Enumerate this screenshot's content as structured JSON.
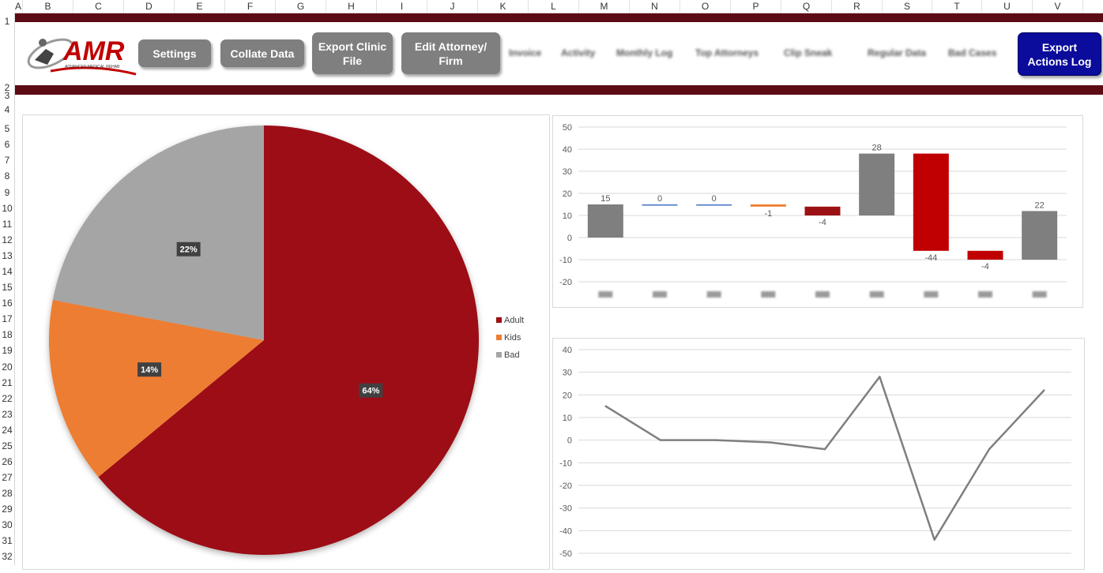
{
  "columns": [
    "A",
    "B",
    "C",
    "D",
    "E",
    "F",
    "G",
    "H",
    "I",
    "J",
    "K",
    "L",
    "M",
    "N",
    "O",
    "P",
    "Q",
    "R",
    "S",
    "T",
    "U",
    "V"
  ],
  "rows": [
    "1",
    "2",
    "3",
    "4",
    "5",
    "6",
    "7",
    "8",
    "9",
    "10",
    "11",
    "12",
    "13",
    "14",
    "15",
    "16",
    "17",
    "18",
    "19",
    "20",
    "21",
    "22",
    "23",
    "24",
    "25",
    "26",
    "27",
    "28",
    "29",
    "30",
    "31",
    "32"
  ],
  "logo": {
    "text": "AMR",
    "tagline": "ADVANCED MEDICAL REHAB"
  },
  "toolbar": {
    "settings": "Settings",
    "collate": "Collate Data",
    "export_clinic": "Export Clinic\nFile",
    "edit_attorney": "Edit Attorney/\nFirm",
    "export_actions": "Export\nActions Log"
  },
  "blurred_links": [
    "Invoice",
    "Activity",
    "Monthly Log",
    "Top Attorneys",
    "Clip Sneak",
    "Regular Data",
    "Bad Cases"
  ],
  "colors": {
    "adult": "#9c1114",
    "kids": "#ed7d31",
    "bad": "#a5a5a5",
    "waterfall_gray": "#7f7f7f",
    "waterfall_red": "#c00000",
    "line": "#7f7f7f",
    "banner": "#5c0a14",
    "export_blue": "#0b0b9c"
  },
  "chart_data": [
    {
      "type": "pie",
      "categories": [
        "Adult",
        "Kids",
        "Bad"
      ],
      "values": [
        64,
        14,
        22
      ],
      "data_labels": [
        "64%",
        "14%",
        "22%"
      ],
      "legend": "right"
    },
    {
      "type": "bar",
      "subtype": "waterfall",
      "ylim": [
        -20,
        50
      ],
      "yticks": [
        "50",
        "40",
        "30",
        "20",
        "10",
        "0",
        "-10",
        "-20"
      ],
      "ytick_values": [
        50,
        40,
        30,
        20,
        10,
        0,
        -10,
        -20
      ],
      "data_labels": [
        "15",
        "0",
        "0",
        "-1",
        "-4",
        "28",
        "-44",
        "-4",
        "22"
      ],
      "bars": [
        {
          "from": 0,
          "to": 15,
          "color": "#7f7f7f"
        },
        {
          "from": 15,
          "to": 15,
          "color": "#4472c4"
        },
        {
          "from": 15,
          "to": 15,
          "color": "#4472c4"
        },
        {
          "from": 15,
          "to": 14,
          "color": "#ed7d31"
        },
        {
          "from": 14,
          "to": 10,
          "color": "#9c1114"
        },
        {
          "from": 10,
          "to": 38,
          "color": "#7f7f7f"
        },
        {
          "from": 38,
          "to": -6,
          "color": "#c00000"
        },
        {
          "from": -6,
          "to": -10,
          "color": "#c00000"
        },
        {
          "from": -10,
          "to": 12,
          "color": "#7f7f7f"
        }
      ],
      "grid": true
    },
    {
      "type": "line",
      "values": [
        15,
        0,
        0,
        -1,
        -4,
        28,
        -44,
        -4,
        22
      ],
      "ylim": [
        -50,
        40
      ],
      "yticks": [
        "40",
        "30",
        "20",
        "10",
        "0",
        "-10",
        "-20",
        "-30",
        "-40",
        "-50"
      ],
      "ytick_values": [
        40,
        30,
        20,
        10,
        0,
        -10,
        -20,
        -30,
        -40,
        -50
      ],
      "grid": true
    }
  ]
}
